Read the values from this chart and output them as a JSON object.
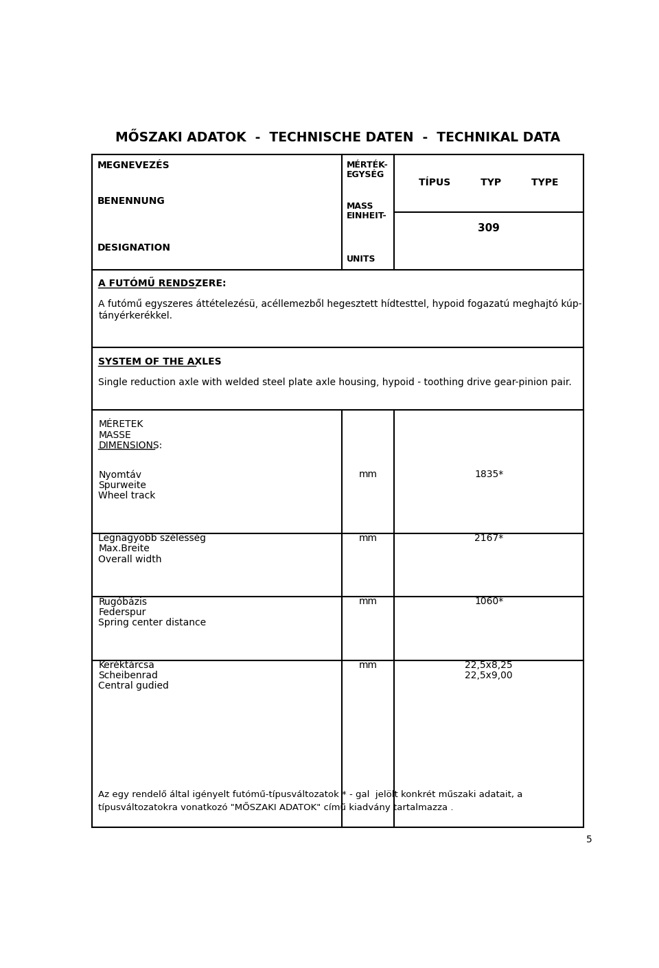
{
  "title": "MŐSZAKI ADATOK  -  TECHNISCHE DATEN  -  TECHNIKAL DATA",
  "bg_color": "#ffffff",
  "text_color": "#000000",
  "page_number": "5",
  "header_col3_line1": "TÍPUS         TYP         TYPE",
  "header_col3_line2": "309",
  "section1_heading": "A FUTÓMŰ RENDSZERE:",
  "section1_text_line1": "A futómű egyszeres áttételezésü, acéllemezből hegesztett hídtesttel, hypoid fogazatú meghajtó kúp-",
  "section1_text_line2": "tányérkerékkel.",
  "section2_heading": "SYSTEM OF THE AXLES",
  "section2_text": "Single reduction axle with welded steel plate axle housing, hypoid - toothing drive gear-pinion pair.",
  "dim_heading_line1": "MÉRETEK",
  "dim_heading_line2": "MASSE",
  "dim_heading_line3": "DIMENSIONS:",
  "rows": [
    {
      "label_lines": [
        "Nyomtáv",
        "Spurweite",
        "Wheel track"
      ],
      "unit": "mm",
      "value_lines": [
        "1835*"
      ]
    },
    {
      "label_lines": [
        "Legnagyobb szélesség",
        "Max.Breite",
        "Overall width"
      ],
      "unit": "mm",
      "value_lines": [
        "2167*"
      ]
    },
    {
      "label_lines": [
        "Rugóbázis",
        "Federspur",
        "Spring center distance"
      ],
      "unit": "mm",
      "value_lines": [
        "1060*"
      ]
    },
    {
      "label_lines": [
        "Keréktárcsa",
        "Scheibenrad",
        "Central gudied"
      ],
      "unit": "mm",
      "value_lines": [
        "22,5x8,25",
        "22,5x9,00"
      ]
    }
  ],
  "footer_line1": "Az egy rendelő által igényelt futómű-típusváltozatok * - gal  jelölt konkrét műszaki adatait, a",
  "footer_line2": "típusváltozatokra vonatkozó \"MŐSZAKI ADATOK\" című kiadvány tartalmazza ."
}
